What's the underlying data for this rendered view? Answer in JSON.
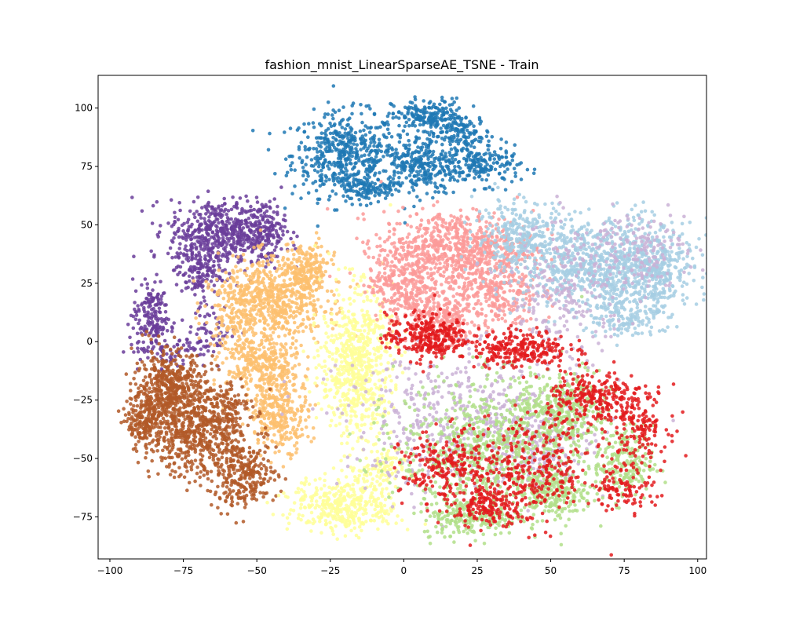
{
  "chart_data": {
    "type": "scatter",
    "title": "fashion_mnist_LinearSparseAE_TSNE - Train",
    "xlabel": "",
    "ylabel": "",
    "xlim": [
      -104,
      103
    ],
    "ylim": [
      -93,
      114
    ],
    "xticks": [
      -100,
      -75,
      -50,
      -25,
      0,
      25,
      50,
      75,
      100
    ],
    "yticks": [
      -75,
      -50,
      -25,
      0,
      25,
      50,
      75,
      100
    ],
    "grid": false,
    "clusters": [
      {
        "color": "#1f78b4",
        "blobs": [
          {
            "cx": -20,
            "cy": 80,
            "sx": 9,
            "sy": 9,
            "n": 500
          },
          {
            "cx": 5,
            "cy": 75,
            "sx": 8,
            "sy": 6,
            "n": 300
          },
          {
            "cx": 8,
            "cy": 96,
            "sx": 6,
            "sy": 4,
            "n": 200
          },
          {
            "cx": 20,
            "cy": 88,
            "sx": 5,
            "sy": 5,
            "n": 150
          },
          {
            "cx": 28,
            "cy": 75,
            "sx": 6,
            "sy": 4,
            "n": 150
          },
          {
            "cx": -13,
            "cy": 65,
            "sx": 5,
            "sy": 3,
            "n": 100
          }
        ]
      },
      {
        "color": "#6a3d9a",
        "blobs": [
          {
            "cx": -62,
            "cy": 47,
            "sx": 9,
            "sy": 7,
            "n": 500
          },
          {
            "cx": -48,
            "cy": 47,
            "sx": 4,
            "sy": 7,
            "n": 150
          },
          {
            "cx": -70,
            "cy": 30,
            "sx": 4,
            "sy": 6,
            "n": 150
          },
          {
            "cx": -86,
            "cy": 12,
            "sx": 3,
            "sy": 7,
            "n": 150
          },
          {
            "cx": -80,
            "cy": -2,
            "sx": 7,
            "sy": 5,
            "n": 100
          },
          {
            "cx": -65,
            "cy": 5,
            "sx": 4,
            "sy": 5,
            "n": 50
          }
        ]
      },
      {
        "color": "#fdbf6f",
        "blobs": [
          {
            "cx": -45,
            "cy": 18,
            "sx": 9,
            "sy": 9,
            "n": 600
          },
          {
            "cx": -33,
            "cy": 30,
            "sx": 4,
            "sy": 6,
            "n": 200
          },
          {
            "cx": -48,
            "cy": -10,
            "sx": 6,
            "sy": 7,
            "n": 300
          },
          {
            "cx": -42,
            "cy": -30,
            "sx": 5,
            "sy": 8,
            "n": 300
          },
          {
            "cx": -58,
            "cy": 10,
            "sx": 5,
            "sy": 10,
            "n": 100
          }
        ]
      },
      {
        "color": "#b15928",
        "blobs": [
          {
            "cx": -80,
            "cy": -20,
            "sx": 6,
            "sy": 8,
            "n": 500
          },
          {
            "cx": -88,
            "cy": -35,
            "sx": 3,
            "sy": 6,
            "n": 200
          },
          {
            "cx": -72,
            "cy": -40,
            "sx": 7,
            "sy": 9,
            "n": 400
          },
          {
            "cx": -55,
            "cy": -57,
            "sx": 6,
            "sy": 7,
            "n": 300
          },
          {
            "cx": -62,
            "cy": -30,
            "sx": 5,
            "sy": 8,
            "n": 200
          }
        ]
      },
      {
        "color": "#ffff99",
        "blobs": [
          {
            "cx": -16,
            "cy": -10,
            "sx": 6,
            "sy": 16,
            "n": 700
          },
          {
            "cx": -20,
            "cy": -70,
            "sx": 9,
            "sy": 6,
            "n": 400
          },
          {
            "cx": -8,
            "cy": -55,
            "sx": 4,
            "sy": 4,
            "n": 80
          }
        ]
      },
      {
        "color": "#fb9a99",
        "blobs": [
          {
            "cx": 18,
            "cy": 40,
            "sx": 13,
            "sy": 8,
            "n": 700
          },
          {
            "cx": 0,
            "cy": 25,
            "sx": 6,
            "sy": 8,
            "n": 300
          },
          {
            "cx": 30,
            "cy": 20,
            "sx": 8,
            "sy": 8,
            "n": 300
          },
          {
            "cx": 12,
            "cy": 10,
            "sx": 6,
            "sy": 5,
            "n": 200
          }
        ]
      },
      {
        "color": "#a6cee3",
        "blobs": [
          {
            "cx": 70,
            "cy": 32,
            "sx": 14,
            "sy": 10,
            "n": 900
          },
          {
            "cx": 85,
            "cy": 28,
            "sx": 5,
            "sy": 10,
            "n": 200
          },
          {
            "cx": 40,
            "cy": 45,
            "sx": 8,
            "sy": 8,
            "n": 300
          },
          {
            "cx": 75,
            "cy": 10,
            "sx": 6,
            "sy": 5,
            "n": 100
          }
        ]
      },
      {
        "color": "#cab2d6",
        "blobs": [
          {
            "cx": 55,
            "cy": 20,
            "sx": 10,
            "sy": 15,
            "n": 250
          },
          {
            "cx": 20,
            "cy": -35,
            "sx": 20,
            "sy": 15,
            "n": 500
          },
          {
            "cx": 80,
            "cy": 40,
            "sx": 8,
            "sy": 8,
            "n": 150
          },
          {
            "cx": 45,
            "cy": -45,
            "sx": 8,
            "sy": 10,
            "n": 200
          }
        ]
      },
      {
        "color": "#b2df8a",
        "blobs": [
          {
            "cx": 30,
            "cy": -45,
            "sx": 16,
            "sy": 15,
            "n": 800
          },
          {
            "cx": 55,
            "cy": -30,
            "sx": 8,
            "sy": 8,
            "n": 300
          },
          {
            "cx": 75,
            "cy": -52,
            "sx": 5,
            "sy": 8,
            "n": 200
          },
          {
            "cx": 22,
            "cy": -75,
            "sx": 8,
            "sy": 4,
            "n": 200
          },
          {
            "cx": 50,
            "cy": -65,
            "sx": 6,
            "sy": 5,
            "n": 200
          }
        ]
      },
      {
        "color": "#e31a1c",
        "blobs": [
          {
            "cx": 8,
            "cy": 2,
            "sx": 7,
            "sy": 5,
            "n": 300
          },
          {
            "cx": 40,
            "cy": -3,
            "sx": 8,
            "sy": 4,
            "n": 250
          },
          {
            "cx": 65,
            "cy": -25,
            "sx": 8,
            "sy": 6,
            "n": 250
          },
          {
            "cx": 80,
            "cy": -35,
            "sx": 5,
            "sy": 8,
            "n": 150
          },
          {
            "cx": 45,
            "cy": -55,
            "sx": 10,
            "sy": 12,
            "n": 300
          },
          {
            "cx": 15,
            "cy": -55,
            "sx": 8,
            "sy": 8,
            "n": 250
          },
          {
            "cx": 30,
            "cy": -70,
            "sx": 6,
            "sy": 4,
            "n": 150
          },
          {
            "cx": 75,
            "cy": -62,
            "sx": 5,
            "sy": 5,
            "n": 100
          }
        ]
      }
    ]
  }
}
